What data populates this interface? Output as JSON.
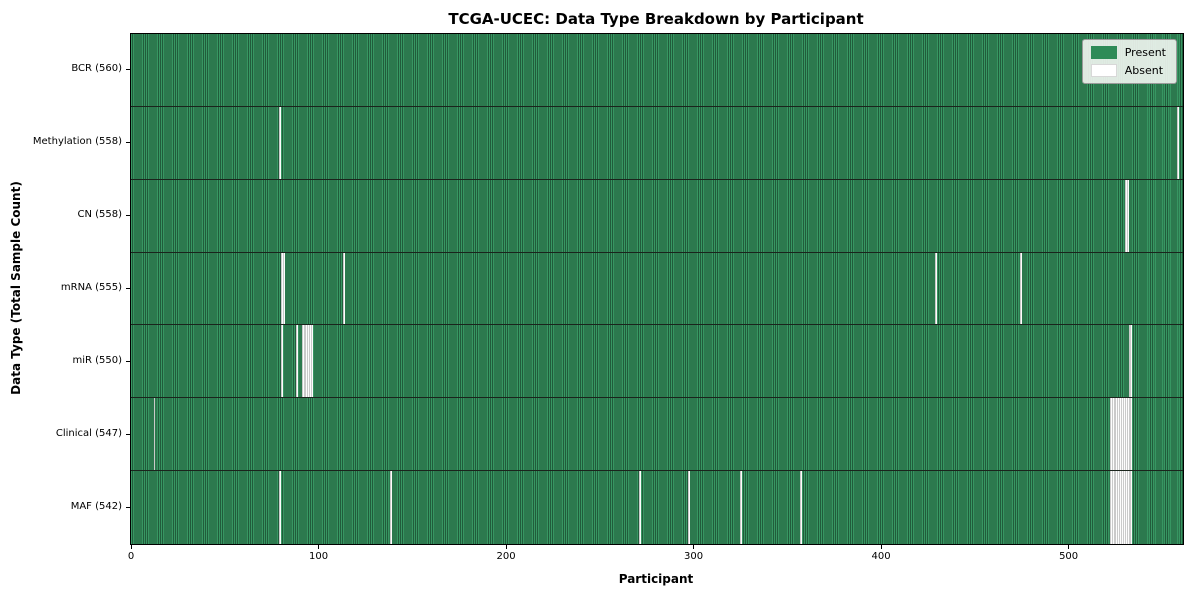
{
  "figure": {
    "title": "TCGA-UCEC: Data Type Breakdown by Participant",
    "xlabel": "Participant",
    "ylabel": "Data Type (Total Sample Count)"
  },
  "legend": {
    "present": "Present",
    "absent": "Absent"
  },
  "colors": {
    "present": "#2e8b57",
    "present_stripe_light": "#379662",
    "present_stripe_dark": "#215c3b",
    "absent": "#ffffff",
    "legend_background": "#eef3ee",
    "axis": "#000000"
  },
  "chart_data": {
    "type": "heatmap",
    "title": "TCGA-UCEC: Data Type Breakdown by Participant",
    "xlabel": "Participant",
    "ylabel": "Data Type (Total Sample Count)",
    "legend_entries": [
      "Present",
      "Absent"
    ],
    "legend_position": "upper right",
    "grid": false,
    "total_participants": 560,
    "xlim": [
      0,
      561
    ],
    "x_ticks": [
      0,
      100,
      200,
      300,
      400,
      500
    ],
    "cell_encoding": "green=present, white=absent",
    "rows": [
      {
        "key": "bcr",
        "label": "BCR (560)",
        "data_type": "BCR",
        "present_count": 560,
        "absent_participants": []
      },
      {
        "key": "methylation",
        "label": "Methylation (558)",
        "data_type": "Methylation",
        "present_count": 558,
        "absent_participants": [
          79,
          558
        ]
      },
      {
        "key": "cn",
        "label": "CN (558)",
        "data_type": "CN",
        "present_count": 558,
        "absent_participants": [
          530,
          531
        ]
      },
      {
        "key": "mrna",
        "label": "mRNA (555)",
        "data_type": "mRNA",
        "present_count": 555,
        "absent_participants": [
          80,
          81,
          113,
          429,
          474
        ]
      },
      {
        "key": "mir",
        "label": "miR (550)",
        "data_type": "miR",
        "present_count": 550,
        "absent_participants": [
          80,
          88,
          91,
          92,
          93,
          94,
          95,
          96,
          532,
          533
        ]
      },
      {
        "key": "clinical",
        "label": "Clinical (547)",
        "data_type": "Clinical",
        "present_count": 547,
        "absent_participants": [
          12,
          522,
          523,
          524,
          525,
          526,
          527,
          528,
          529,
          530,
          531,
          532,
          533
        ]
      },
      {
        "key": "maf",
        "label": "MAF (542)",
        "data_type": "MAF",
        "present_count": 542,
        "absent_participants": [
          79,
          138,
          271,
          297,
          325,
          357,
          522,
          523,
          524,
          525,
          526,
          527,
          528,
          529,
          530,
          531,
          532,
          533
        ]
      }
    ]
  }
}
